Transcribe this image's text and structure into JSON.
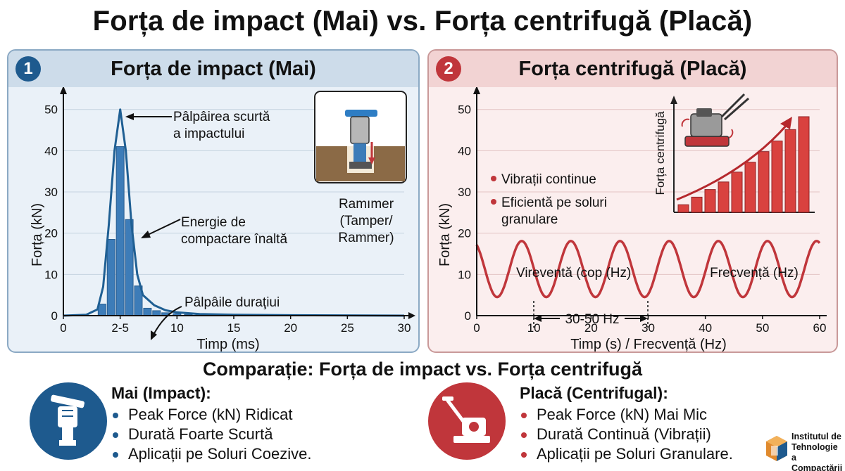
{
  "title": "Forța de impact (Mai) vs. Forța centrifugă (Placă)",
  "panel_left": {
    "number": "1",
    "title": "Forța de impact (Mai)",
    "annotations": [
      "Pâlpâirea scurtă",
      "a impactului",
      "Energie de",
      "compactare înaltă",
      "Pâlpâile duraţiui"
    ],
    "inset_caption": [
      "Ramımer",
      "(Tamper/",
      "Rammer)"
    ]
  },
  "panel_right": {
    "number": "2",
    "title": "Forța centrifugă (Placă)",
    "bullets": [
      "Vibrații continue",
      "Eficientă pe soluri",
      "granulare"
    ],
    "wave_label": "Vireventă (cop (Hz)",
    "range_label": "30-50 Hz",
    "inset_ylabel": "Forța centrifugă",
    "inset_xlabel": "Frecvență (Hz)"
  },
  "chart_data": [
    {
      "type": "bar",
      "xlabel": "Timp (ms)",
      "ylabel": "Forța (kN)",
      "xlim": [
        0,
        30
      ],
      "ylim": [
        0,
        52
      ],
      "yticks": [
        0,
        10,
        20,
        30,
        40,
        50
      ],
      "xtick_labels": [
        "0",
        "2-5",
        "10",
        "15",
        "20",
        "25",
        "30"
      ],
      "xtick_values": [
        0,
        5,
        10,
        15,
        20,
        25,
        30
      ],
      "bar_x": [
        3.4,
        4.2,
        5.0,
        5.8,
        6.6,
        7.4,
        8.2,
        9.0,
        10.0,
        11.0,
        12.0,
        13.0
      ],
      "bar_values": [
        2.8,
        18.5,
        41,
        23.3,
        7.2,
        1.8,
        1.2,
        0.7,
        0.5,
        0.3,
        0.2,
        0.2
      ],
      "curve": {
        "x": [
          0,
          2,
          3,
          3.5,
          4,
          4.5,
          5,
          5.5,
          6,
          6.5,
          7,
          8,
          9,
          10,
          12,
          15,
          20,
          30
        ],
        "y": [
          0,
          0.2,
          1.5,
          7,
          22,
          40,
          50,
          40,
          22,
          10,
          5,
          2.5,
          1.3,
          0.8,
          0.4,
          0.2,
          0.1,
          0
        ]
      }
    },
    {
      "type": "line",
      "xlabel": "Timp (s) / Frecvență (Hz)",
      "ylabel": "Forța (kN)",
      "xlim": [
        0,
        60
      ],
      "ylim": [
        0,
        52
      ],
      "yticks": [
        0,
        10,
        20,
        30,
        40,
        50
      ],
      "xticks": [
        0,
        10,
        20,
        30,
        40,
        50,
        60
      ],
      "series": [
        {
          "amplitude": 6.8,
          "offset": 11.3,
          "period": 8.6,
          "phase": 2.1
        }
      ]
    },
    {
      "type": "bar",
      "xlabel": "Frecvență (Hz)",
      "ylabel": "Forța centrifugă",
      "values": [
        1,
        2,
        3,
        4,
        5.3,
        6.6,
        8,
        9.4,
        10.9,
        12.6
      ]
    }
  ],
  "bottom": {
    "title": "Comparație: Forța de impact vs. Forța centrifugă",
    "left_title": "Mai (Impact):",
    "left_items": [
      "Peak Force (kN) Ridicat",
      "Durată Foarte Scurtă",
      "Aplicații pe Soluri Coezive."
    ],
    "right_title": "Placă (Centrifugal):",
    "right_items": [
      "Peak Force (kN) Mai Mic",
      "Durată Continuă (Vibrații)",
      "Aplicații pe Soluri Granulare."
    ]
  },
  "logo": {
    "lines": [
      "Institutul de",
      "Tehnologie a",
      "Compactării"
    ]
  },
  "colors": {
    "blue": "#1e5a8e",
    "red": "#c0363b",
    "bar_blue": "#3d7cb8",
    "bar_red": "#d9423f"
  }
}
